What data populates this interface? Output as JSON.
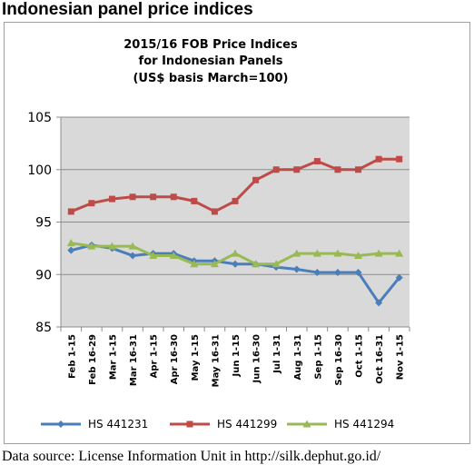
{
  "heading": "Indonesian panel price indices",
  "source_note": "Data source: License Information Unit in http://silk.dephut.go.id/",
  "chart_data": {
    "type": "line",
    "title_lines": [
      "2015/16 FOB Price Indices",
      "for Indonesian Panels",
      "(US$ basis March=100)"
    ],
    "categories": [
      "Feb 1-15",
      "Feb 16-29",
      "Mar 1-15",
      "Mar 16-31",
      "Apr 1-15",
      "Apr 16-30",
      "May 1-15",
      "May 16-31",
      "Jun 1-15",
      "Jun 16-30",
      "Jul 1-31",
      "Aug 1-31",
      "Sep 1-15",
      "Sep 16-30",
      "Oct 1-15",
      "Oct 16-31",
      "Nov 1-15"
    ],
    "ylim": [
      85,
      105
    ],
    "yticks": [
      85,
      90,
      95,
      100,
      105
    ],
    "grid": true,
    "plot_background": "#d9d9d9",
    "legend_position": "bottom",
    "series": [
      {
        "name": "HS 441231",
        "color": "#4a7ebb",
        "marker": "diamond",
        "values": [
          92.3,
          92.8,
          92.5,
          91.8,
          92.0,
          92.0,
          91.3,
          91.3,
          91.0,
          91.0,
          90.7,
          90.5,
          90.2,
          90.2,
          90.2,
          87.3,
          89.7
        ]
      },
      {
        "name": "HS 441299",
        "color": "#be4b48",
        "marker": "square",
        "values": [
          96.0,
          96.8,
          97.2,
          97.4,
          97.4,
          97.4,
          97.0,
          96.0,
          97.0,
          99.0,
          100.0,
          100.0,
          100.8,
          100.0,
          100.0,
          101.0,
          101.0
        ]
      },
      {
        "name": "HS 441294",
        "color": "#98b954",
        "marker": "triangle",
        "values": [
          93.0,
          92.7,
          92.7,
          92.7,
          91.8,
          91.8,
          91.0,
          91.0,
          92.0,
          91.0,
          91.0,
          92.0,
          92.0,
          92.0,
          91.8,
          92.0,
          92.0
        ]
      }
    ]
  }
}
